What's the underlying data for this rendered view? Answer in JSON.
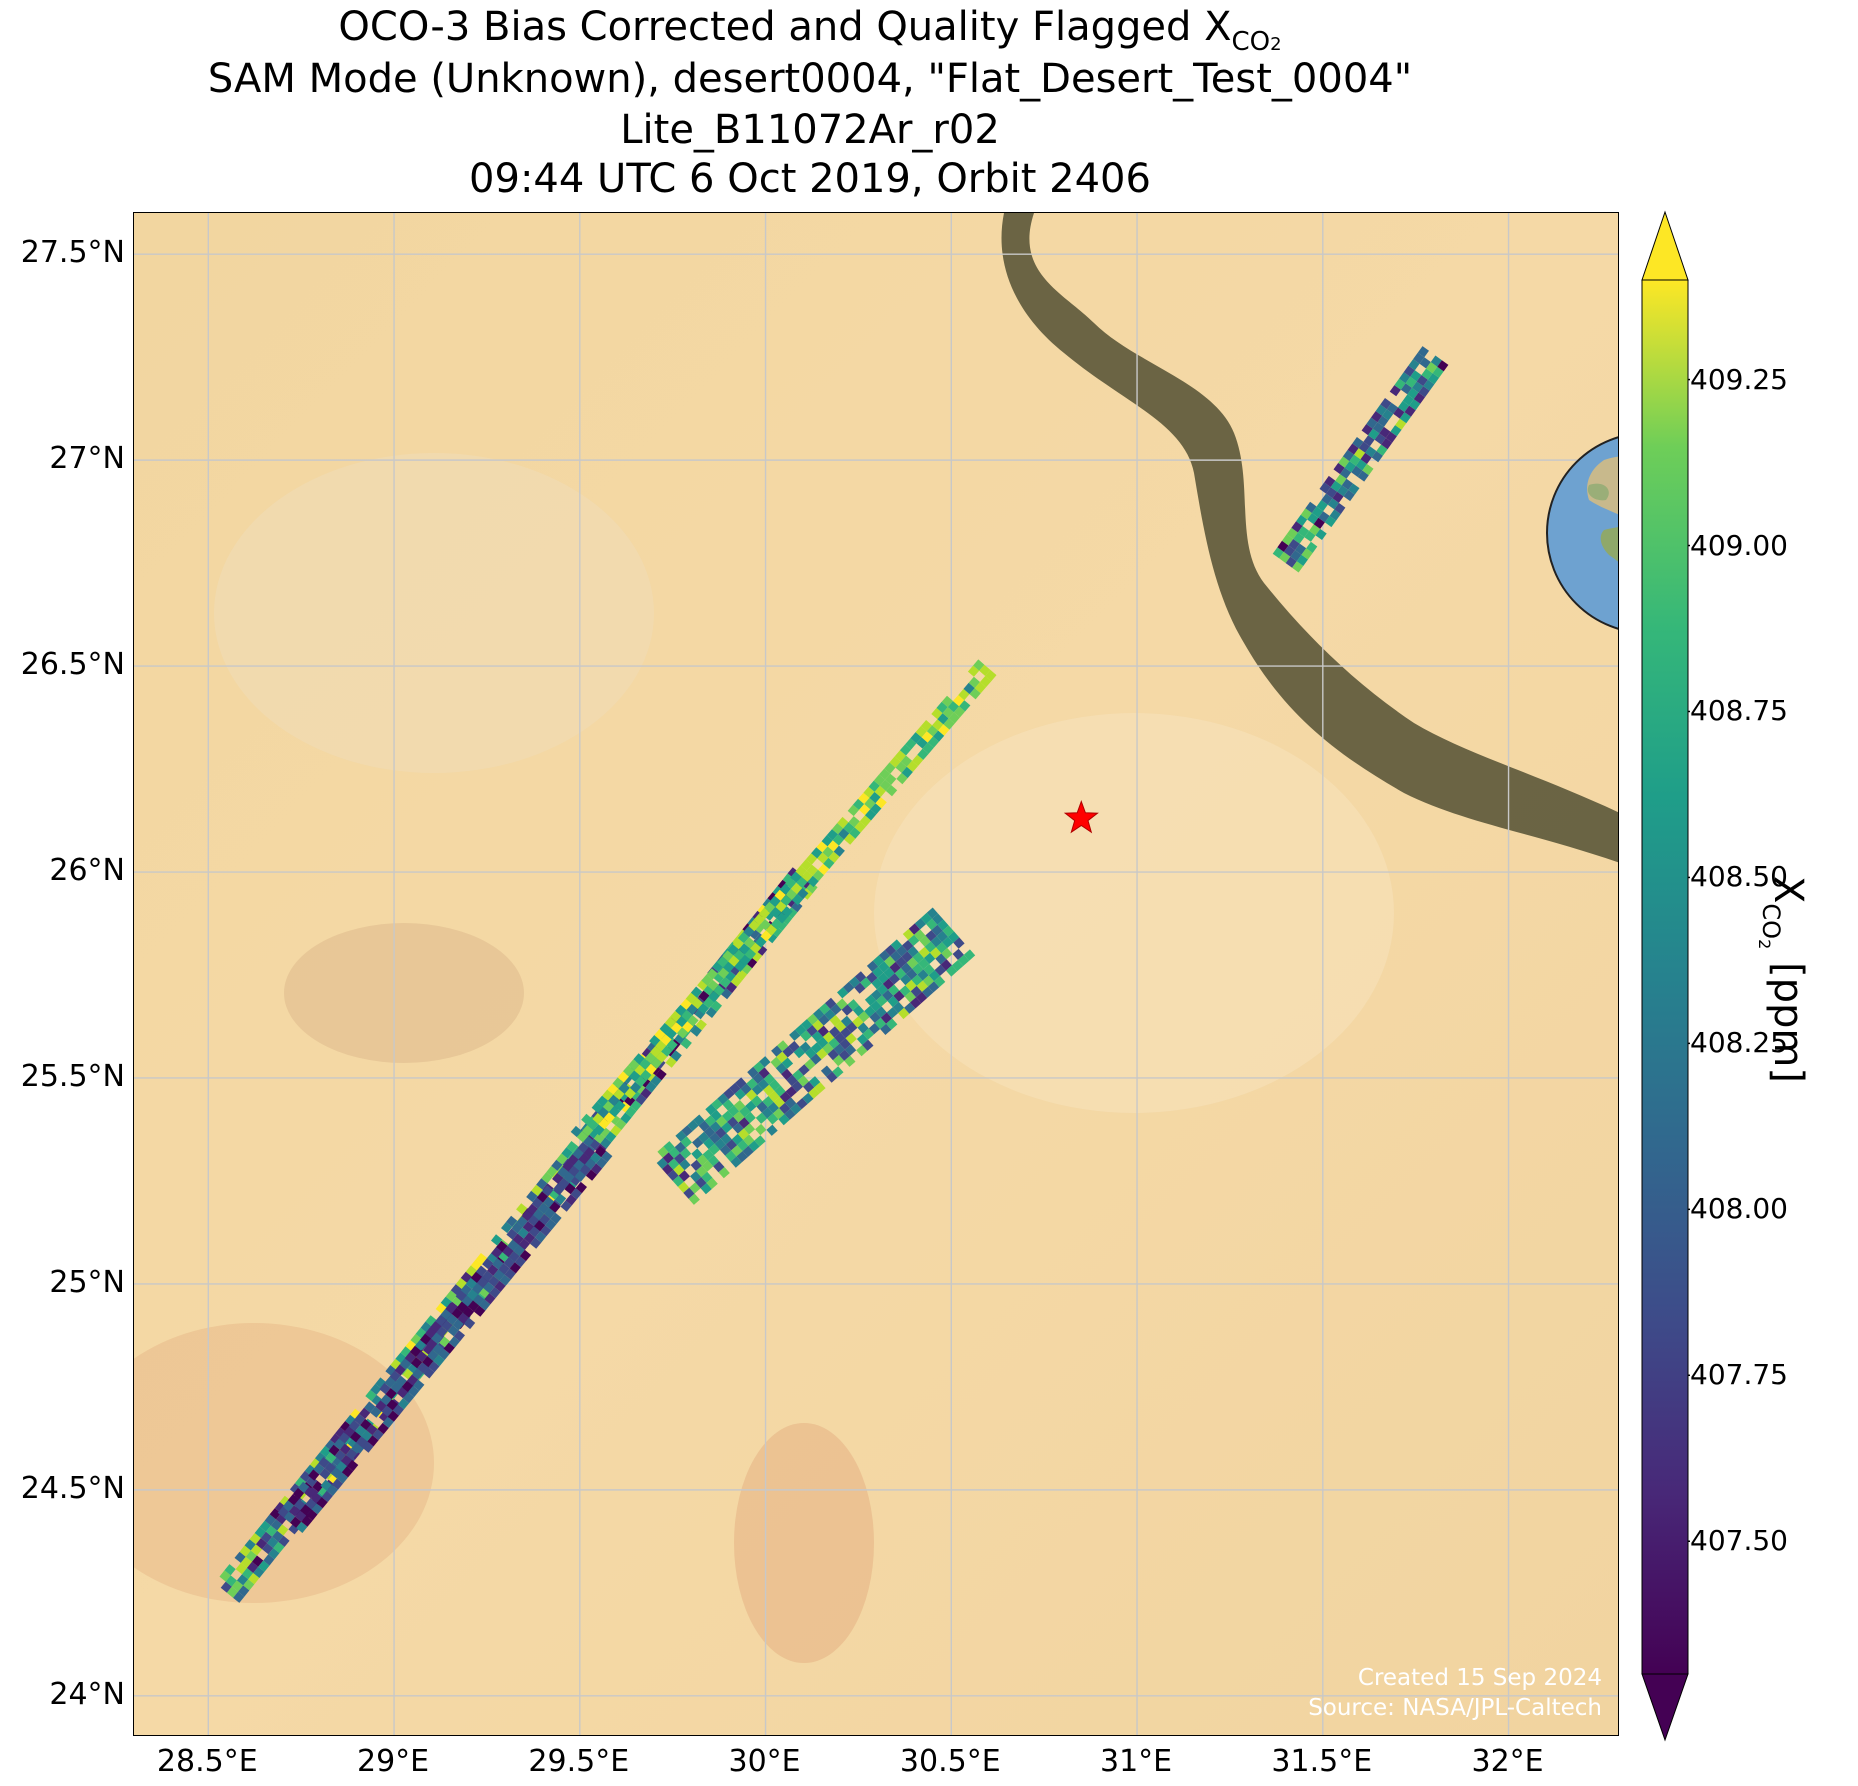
{
  "title": {
    "line1_prefix": "OCO-3 Bias Corrected and Quality Flagged X",
    "line1_sub": "CO",
    "line1_sub2": "2",
    "line2": "SAM Mode (Unknown), desert0004, \"Flat_Desert_Test_0004\"",
    "line3": "Lite_B11072Ar_r02",
    "line4": "09:44 UTC 6 Oct 2019, Orbit 2406"
  },
  "map": {
    "lon_range": [
      28.3,
      32.3
    ],
    "lat_range": [
      23.9,
      27.6
    ],
    "gridlines": true,
    "x_ticks": [
      "28.5°E",
      "29°E",
      "29.5°E",
      "30°E",
      "30.5°E",
      "31°E",
      "31.5°E",
      "32°E"
    ],
    "y_ticks": [
      "27.5°N",
      "27°N",
      "26.5°N",
      "26°N",
      "25.5°N",
      "25°N",
      "24.5°N",
      "24°N"
    ],
    "target_marker": {
      "lon": 30.85,
      "lat": 26.13,
      "color": "#ff0000",
      "icon": "star-icon"
    },
    "inset_globe": {
      "icon": "globe-icon",
      "marker_color": "#ff0000"
    },
    "credit_line1": "Created 15 Sep 2024",
    "credit_line2": "Source: NASA/JPL-Caltech"
  },
  "colorbar": {
    "colormap": "viridis",
    "range": [
      407.3,
      409.4
    ],
    "extend": "both",
    "ticks": [
      "409.25",
      "409.00",
      "408.75",
      "408.50",
      "408.25",
      "408.00",
      "407.75",
      "407.50"
    ],
    "label_prefix": "X",
    "label_sub": "CO",
    "label_sub2": "2",
    "label_suffix": " [ppm]"
  },
  "swaths": [
    {
      "from": [
        28.55,
        24.25
      ],
      "to": [
        30.1,
        25.98
      ],
      "width_deg": 0.09,
      "min": 407.35,
      "max": 409.3
    },
    {
      "from": [
        28.72,
        24.42
      ],
      "to": [
        29.55,
        25.33
      ],
      "width_deg": 0.08,
      "min": 407.35,
      "max": 408.2
    },
    {
      "from": [
        29.5,
        25.35
      ],
      "to": [
        30.6,
        26.5
      ],
      "width_deg": 0.07,
      "min": 408.3,
      "max": 409.3
    },
    {
      "from": [
        29.75,
        25.25
      ],
      "to": [
        30.5,
        25.85
      ],
      "width_deg": 0.18,
      "min": 407.6,
      "max": 409.1
    },
    {
      "from": [
        31.4,
        26.75
      ],
      "to": [
        31.8,
        27.25
      ],
      "width_deg": 0.08,
      "min": 407.5,
      "max": 409.0
    }
  ]
}
